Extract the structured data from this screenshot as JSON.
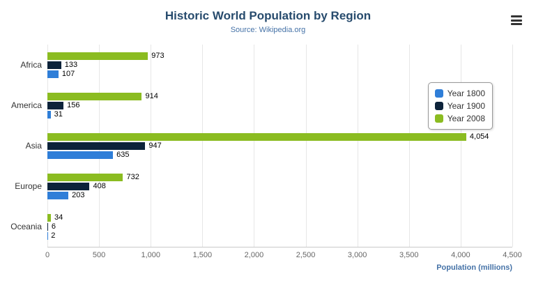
{
  "header": {
    "title": "Historic World Population by Region",
    "subtitle": "Source: Wikipedia.org"
  },
  "menu": {
    "icon": "hamburger-icon"
  },
  "chart_data": {
    "type": "bar",
    "orientation": "horizontal",
    "title": "Historic World Population by Region",
    "subtitle": "Source: Wikipedia.org",
    "categories": [
      "Africa",
      "America",
      "Asia",
      "Europe",
      "Oceania"
    ],
    "series": [
      {
        "name": "Year 1800",
        "color": "#2f7ed8",
        "values": [
          107,
          31,
          635,
          203,
          2
        ]
      },
      {
        "name": "Year 1900",
        "color": "#0d233a",
        "values": [
          133,
          156,
          947,
          408,
          6
        ]
      },
      {
        "name": "Year 2008",
        "color": "#8bbc21",
        "values": [
          973,
          914,
          4054,
          732,
          34
        ]
      }
    ],
    "bar_order_top_to_bottom": [
      "Year 2008",
      "Year 1900",
      "Year 1800"
    ],
    "xlabel": "Population (millions)",
    "ylabel": "",
    "xlim": [
      0,
      4500
    ],
    "xticks": [
      0,
      500,
      1000,
      1500,
      2000,
      2500,
      3000,
      3500,
      4000,
      4500
    ],
    "grid": true,
    "legend_position": "right",
    "data_labels": true
  },
  "colors": {
    "title": "#274b6d",
    "subtitle": "#4572a7",
    "axis_label": "#4572a7",
    "tick_text": "#666666",
    "gridline": "#e6e6e6"
  }
}
